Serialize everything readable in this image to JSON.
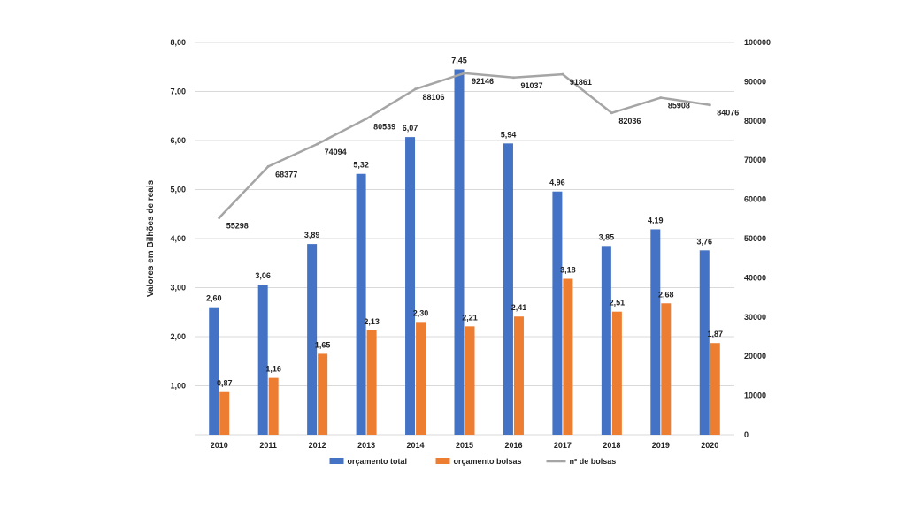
{
  "chart_data": {
    "type": "bar",
    "categories": [
      "2010",
      "2011",
      "2012",
      "2013",
      "2014",
      "2015",
      "2016",
      "2017",
      "2018",
      "2019",
      "2020"
    ],
    "series": [
      {
        "name": "orçamento total",
        "type": "bar",
        "axis": "left",
        "color": "#4472C4",
        "values": [
          2.6,
          3.06,
          3.89,
          5.32,
          6.07,
          7.45,
          5.94,
          4.96,
          3.85,
          4.19,
          3.76
        ],
        "labels": [
          "2,60",
          "3,06",
          "3,89",
          "5,32",
          "6,07",
          "7,45",
          "5,94",
          "4,96",
          "3,85",
          "4,19",
          "3,76"
        ]
      },
      {
        "name": "orçamento bolsas",
        "type": "bar",
        "axis": "left",
        "color": "#ED7D31",
        "values": [
          0.87,
          1.16,
          1.65,
          2.13,
          2.3,
          2.21,
          2.41,
          3.18,
          2.51,
          2.68,
          1.87
        ],
        "labels": [
          "0,87",
          "1,16",
          "1,65",
          "2,13",
          "2,30",
          "2,21",
          "2,41",
          "3,18",
          "2,51",
          "2,68",
          "1,87"
        ]
      },
      {
        "name": "nº de bolsas",
        "type": "line",
        "axis": "right",
        "color": "#A5A5A5",
        "values": [
          55298,
          68377,
          74094,
          80539,
          88106,
          92146,
          91037,
          91861,
          82036,
          85908,
          84076
        ],
        "labels": [
          "55298",
          "68377",
          "74094",
          "80539",
          "88106",
          "92146",
          "91037",
          "91861",
          "82036",
          "85908",
          "84076"
        ]
      }
    ],
    "ylabel": "Valores em Bilhões de reais",
    "ylim": [
      0,
      8
    ],
    "y_ticks": [
      "1,00",
      "2,00",
      "3,00",
      "4,00",
      "5,00",
      "6,00",
      "7,00",
      "8,00"
    ],
    "y2lim": [
      0,
      100000
    ],
    "y2_ticks": [
      "0",
      "10000",
      "20000",
      "30000",
      "40000",
      "50000",
      "60000",
      "70000",
      "80000",
      "90000",
      "100000"
    ],
    "grid": true,
    "legend_position": "bottom"
  }
}
